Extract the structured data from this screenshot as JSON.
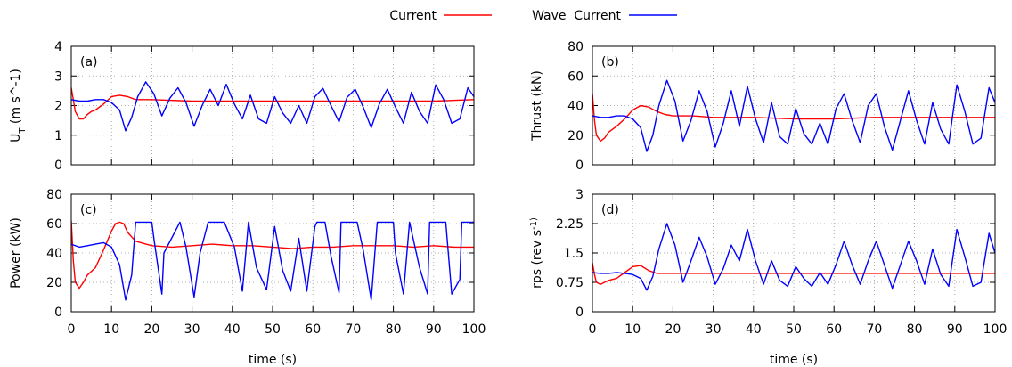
{
  "legend": {
    "placement": "top-center",
    "entries": [
      {
        "label": "Current",
        "color": "#ff0000"
      },
      {
        "label": "Wave  Current",
        "color": "#0000ff"
      }
    ]
  },
  "chart_data": [
    {
      "type": "line",
      "panel_label": "(a)",
      "ylabel": "U_T (m s^-1)",
      "xlabel": "",
      "xlim": [
        0,
        100
      ],
      "ylim": [
        0,
        4
      ],
      "xticks": [
        0,
        10,
        20,
        30,
        40,
        50,
        60,
        70,
        80,
        90,
        100
      ],
      "yticks": [
        "0",
        "1",
        "2",
        "3",
        "4"
      ],
      "grid": true,
      "series": [
        {
          "name": "Current",
          "color": "#ff0000",
          "x": [
            0,
            0.5,
            1,
            2,
            3,
            4,
            5,
            6,
            8,
            10,
            12,
            14,
            16,
            20,
            30,
            40,
            50,
            60,
            70,
            80,
            90,
            100
          ],
          "y": [
            2.6,
            2.2,
            1.8,
            1.55,
            1.55,
            1.7,
            1.8,
            1.85,
            2.05,
            2.3,
            2.35,
            2.3,
            2.2,
            2.2,
            2.15,
            2.15,
            2.15,
            2.15,
            2.15,
            2.15,
            2.15,
            2.2
          ]
        },
        {
          "name": "Wave  Current",
          "color": "#0000ff",
          "x": [
            0,
            2,
            4,
            6,
            8,
            10,
            12,
            13.5,
            15,
            16.5,
            18.5,
            20.5,
            22.5,
            24.5,
            26.5,
            28.5,
            30.5,
            32.5,
            34.5,
            36.5,
            38.5,
            40.5,
            42.5,
            44.5,
            46.5,
            48.5,
            50.5,
            52.5,
            54.5,
            56.5,
            58.5,
            60.5,
            62.5,
            64.5,
            66.5,
            68.5,
            70.5,
            72.5,
            74.5,
            76.5,
            78.5,
            80.5,
            82.5,
            84.5,
            86.5,
            88.5,
            90.5,
            92.5,
            94.5,
            96.5,
            98.5,
            100
          ],
          "y": [
            2.2,
            2.15,
            2.15,
            2.2,
            2.2,
            2.1,
            1.85,
            1.15,
            1.6,
            2.3,
            2.8,
            2.4,
            1.65,
            2.25,
            2.6,
            2.1,
            1.3,
            2.0,
            2.55,
            2.0,
            2.72,
            2.05,
            1.55,
            2.35,
            1.55,
            1.4,
            2.3,
            1.75,
            1.4,
            2.0,
            1.4,
            2.3,
            2.58,
            2.0,
            1.45,
            2.28,
            2.55,
            1.95,
            1.25,
            2.05,
            2.55,
            1.95,
            1.4,
            2.45,
            1.8,
            1.4,
            2.7,
            2.2,
            1.4,
            1.55,
            2.6,
            2.3
          ]
        }
      ]
    },
    {
      "type": "line",
      "panel_label": "(b)",
      "ylabel": "Thrust (kN)",
      "xlabel": "",
      "xlim": [
        0,
        100
      ],
      "ylim": [
        0,
        80
      ],
      "xticks": [
        0,
        10,
        20,
        30,
        40,
        50,
        60,
        70,
        80,
        90,
        100
      ],
      "yticks": [
        "0",
        "20",
        "40",
        "60",
        "80"
      ],
      "grid": true,
      "series": [
        {
          "name": "Current",
          "color": "#ff0000",
          "x": [
            0,
            0.5,
            1,
            2,
            3,
            4,
            6,
            8,
            10,
            12,
            14,
            16,
            18,
            20,
            25,
            30,
            40,
            50,
            60,
            70,
            80,
            90,
            100
          ],
          "y": [
            48,
            30,
            20,
            16,
            18,
            22,
            26,
            31,
            37,
            40,
            39,
            36,
            34,
            33,
            33,
            32,
            32,
            31,
            31,
            32,
            32,
            32,
            32
          ]
        },
        {
          "name": "Wave  Current",
          "color": "#0000ff",
          "x": [
            0,
            2,
            4,
            6,
            8,
            10,
            12,
            13.5,
            15,
            16.5,
            18.5,
            20.5,
            22.5,
            24.5,
            26.5,
            28.5,
            30.5,
            32.5,
            34.5,
            36.5,
            38.5,
            40.5,
            42.5,
            44.5,
            46.5,
            48.5,
            50.5,
            52.5,
            54.5,
            56.5,
            58.5,
            60.5,
            62.5,
            64.5,
            66.5,
            68.5,
            70.5,
            72.5,
            74.5,
            76.5,
            78.5,
            80.5,
            82.5,
            84.5,
            86.5,
            88.5,
            90.5,
            92.5,
            94.5,
            96.5,
            98.5,
            100
          ],
          "y": [
            33,
            32,
            32,
            33,
            33,
            31,
            25,
            9,
            20,
            40,
            57,
            43,
            16,
            30,
            50,
            36,
            12,
            28,
            50,
            26,
            53,
            31,
            15,
            42,
            19,
            14,
            38,
            21,
            14,
            28,
            14,
            38,
            48,
            30,
            15,
            40,
            48,
            26,
            10,
            30,
            50,
            30,
            14,
            42,
            24,
            14,
            54,
            36,
            14,
            18,
            52,
            42
          ]
        }
      ]
    },
    {
      "type": "line",
      "panel_label": "(c)",
      "ylabel": "Power (kW)",
      "xlabel": "time (s)",
      "xlim": [
        0,
        100
      ],
      "ylim": [
        0,
        80
      ],
      "xticks": [
        0,
        10,
        20,
        30,
        40,
        50,
        60,
        70,
        80,
        90,
        100
      ],
      "yticks": [
        "0",
        "20",
        "40",
        "60",
        "80"
      ],
      "grid": true,
      "series": [
        {
          "name": "Current",
          "color": "#ff0000",
          "x": [
            0,
            0.5,
            1,
            2,
            3,
            4,
            6,
            8,
            10,
            11,
            12,
            13,
            14,
            16,
            20,
            25,
            30,
            35,
            40,
            45,
            50,
            55,
            60,
            65,
            70,
            75,
            80,
            85,
            90,
            95,
            100
          ],
          "y": [
            62,
            35,
            20,
            16,
            20,
            25,
            30,
            42,
            55,
            60,
            61,
            60,
            54,
            48,
            45,
            44,
            45,
            46,
            45,
            45,
            44,
            43,
            44,
            44,
            45,
            45,
            45,
            44,
            45,
            44,
            44
          ]
        },
        {
          "name": "Wave  Current",
          "color": "#0000ff",
          "x": [
            0,
            2,
            4,
            6,
            8,
            10,
            12,
            13.5,
            15,
            16,
            20,
            20.5,
            22.5,
            23,
            27,
            28.5,
            30.5,
            32,
            34,
            38,
            40.5,
            42.5,
            44,
            46,
            48.5,
            50.5,
            52.5,
            54.5,
            56.5,
            58.5,
            60.5,
            61,
            63,
            64.5,
            66.5,
            67,
            71,
            72.5,
            74.5,
            76,
            80,
            80.5,
            82.5,
            84,
            86.5,
            88.5,
            89,
            93,
            94.5,
            96.5,
            97,
            100
          ],
          "y": [
            46,
            44,
            45,
            46,
            47,
            44,
            32,
            8,
            25,
            61,
            61,
            50,
            12,
            40,
            61,
            44,
            10,
            40,
            61,
            61,
            44,
            14,
            61,
            30,
            15,
            58,
            28,
            14,
            50,
            14,
            58,
            61,
            61,
            38,
            13,
            61,
            61,
            42,
            8,
            61,
            61,
            40,
            12,
            61,
            30,
            12,
            61,
            61,
            12,
            22,
            61,
            61
          ]
        }
      ]
    },
    {
      "type": "line",
      "panel_label": "(d)",
      "ylabel": "rps (rev s^-1)",
      "xlabel": "time (s)",
      "xlim": [
        0,
        100
      ],
      "ylim": [
        0,
        3
      ],
      "xticks": [
        0,
        10,
        20,
        30,
        40,
        50,
        60,
        70,
        80,
        90,
        100
      ],
      "yticks": [
        "0",
        "0.75",
        "1.5",
        "2.25",
        "3"
      ],
      "grid": true,
      "series": [
        {
          "name": "Current",
          "color": "#ff0000",
          "x": [
            0,
            0.5,
            1,
            2,
            3,
            4,
            6,
            8,
            10,
            12,
            14,
            16,
            20,
            30,
            40,
            50,
            60,
            70,
            80,
            90,
            100
          ],
          "y": [
            1.25,
            0.95,
            0.75,
            0.7,
            0.75,
            0.8,
            0.85,
            1.0,
            1.15,
            1.18,
            1.05,
            0.98,
            0.98,
            0.98,
            0.98,
            0.98,
            0.98,
            0.98,
            0.98,
            0.98,
            0.98
          ]
        },
        {
          "name": "Wave  Current",
          "color": "#0000ff",
          "x": [
            0,
            2,
            4,
            6,
            8,
            10,
            12,
            13.5,
            15,
            16.5,
            18.5,
            20.5,
            22.5,
            24.5,
            26.5,
            28.5,
            30.5,
            32.5,
            34.5,
            36.5,
            38.5,
            40.5,
            42.5,
            44.5,
            46.5,
            48.5,
            50.5,
            52.5,
            54.5,
            56.5,
            58.5,
            60.5,
            62.5,
            64.5,
            66.5,
            68.5,
            70.5,
            72.5,
            74.5,
            76.5,
            78.5,
            80.5,
            82.5,
            84.5,
            86.5,
            88.5,
            90.5,
            92.5,
            94.5,
            96.5,
            98.5,
            100
          ],
          "y": [
            1.0,
            0.98,
            0.98,
            1.0,
            0.98,
            0.95,
            0.85,
            0.55,
            0.9,
            1.6,
            2.25,
            1.7,
            0.75,
            1.3,
            1.9,
            1.4,
            0.7,
            1.1,
            1.7,
            1.3,
            2.1,
            1.3,
            0.7,
            1.3,
            0.8,
            0.65,
            1.15,
            0.85,
            0.65,
            1.0,
            0.7,
            1.2,
            1.8,
            1.2,
            0.7,
            1.3,
            1.8,
            1.2,
            0.6,
            1.2,
            1.8,
            1.3,
            0.7,
            1.6,
            0.95,
            0.65,
            2.1,
            1.4,
            0.65,
            0.75,
            2.0,
            1.5
          ]
        }
      ]
    }
  ]
}
